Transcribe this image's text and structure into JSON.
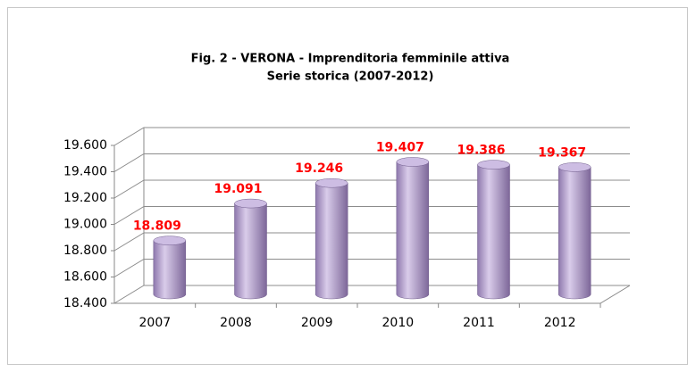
{
  "chart_data": {
    "type": "bar3d",
    "title": "Fig. 2 - VERONA - Imprenditoria femminile attiva",
    "subtitle": "Serie storica (2007-2012)",
    "categories": [
      "2007",
      "2008",
      "2009",
      "2010",
      "2011",
      "2012"
    ],
    "values": [
      18809,
      19091,
      19246,
      19407,
      19386,
      19367
    ],
    "value_labels": [
      "18.809",
      "19.091",
      "19.246",
      "19.407",
      "19.386",
      "19.367"
    ],
    "color": "#b9a3d6",
    "ylim": [
      18400,
      19600
    ],
    "yticks": [
      {
        "value": 18400,
        "label": "18.400"
      },
      {
        "value": 18600,
        "label": "18.600"
      },
      {
        "value": 18800,
        "label": "18.800"
      },
      {
        "value": 19000,
        "label": "19.000"
      },
      {
        "value": 19200,
        "label": "19.200"
      },
      {
        "value": 19400,
        "label": "19.400"
      },
      {
        "value": 19600,
        "label": "19.600"
      }
    ],
    "grid": true
  }
}
